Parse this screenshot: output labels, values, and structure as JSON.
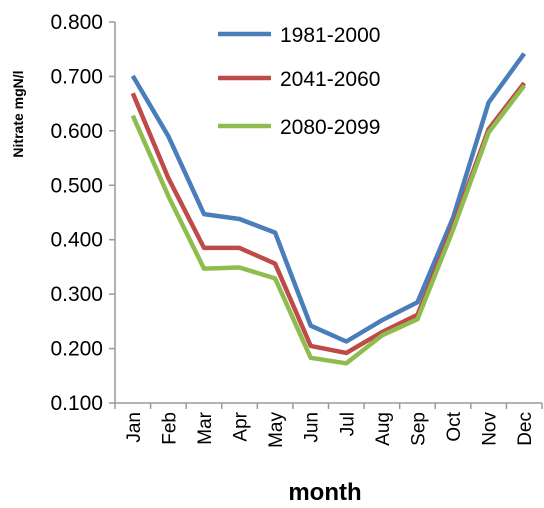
{
  "chart_data": {
    "type": "line",
    "xlabel": "month",
    "ylabel": "Nitrate mgN/l",
    "categories": [
      "Jan",
      "Feb",
      "Mar",
      "Apr",
      "May",
      "Jun",
      "Jul",
      "Aug",
      "Sep",
      "Oct",
      "Nov",
      "Dec"
    ],
    "ylim": [
      0.1,
      0.8
    ],
    "yticks": [
      "0.100",
      "0.200",
      "0.300",
      "0.400",
      "0.500",
      "0.600",
      "0.700",
      "0.800"
    ],
    "legend_position": "top-center",
    "series": [
      {
        "name": "1981-2000",
        "color": "#4a7ebb",
        "values": [
          0.701,
          0.59,
          0.447,
          0.438,
          0.413,
          0.242,
          0.213,
          0.252,
          0.285,
          0.44,
          0.652,
          0.742
        ]
      },
      {
        "name": "2041-2060",
        "color": "#be4b48",
        "values": [
          0.669,
          0.513,
          0.385,
          0.385,
          0.356,
          0.205,
          0.192,
          0.23,
          0.262,
          0.425,
          0.603,
          0.688
        ]
      },
      {
        "name": "2080-2099",
        "color": "#8fbc4f",
        "values": [
          0.628,
          0.48,
          0.347,
          0.349,
          0.329,
          0.183,
          0.173,
          0.224,
          0.254,
          0.418,
          0.597,
          0.683
        ]
      }
    ]
  }
}
